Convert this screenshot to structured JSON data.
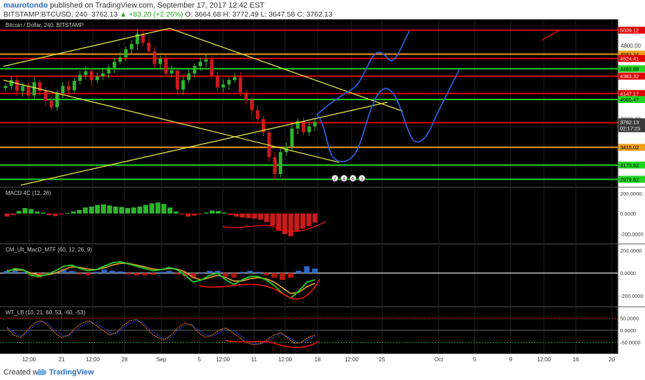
{
  "header": {
    "author": "maurotondo",
    "published": "published on TradingView.com, September 17, 2017 12:42 EST",
    "symbol": "BITSTAMP:BTCUSD, 240",
    "last": "3762.13",
    "change": "▲ +83.20 (+2.26%)",
    "ohlc": "O: 3664.68 H: 3772.49 L: 3647.58 C: 3762.13"
  },
  "footer": {
    "created_with": "Created with",
    "brand": "TradingView"
  },
  "colors": {
    "background": "#000000",
    "up": "#2db52d",
    "down": "#cc1a1a",
    "resistance": "#e00000",
    "support": "#21d421",
    "orange": "#f0a01e",
    "trendline": "#e8e84a",
    "projection": "#2a5ed9",
    "annotation": "#e01010"
  },
  "chart_data": [
    {
      "type": "line",
      "title": "Bitcoin / Dollar, 240, BITSTAMP",
      "x_ticks": [
        "12:00",
        "21",
        "12:00",
        "28",
        "Sep",
        "5",
        "12:00",
        "11",
        "12:00",
        "18",
        "12:00",
        "25",
        "Oct",
        "5",
        "9",
        "12:00",
        "16",
        "20"
      ],
      "ylim": [
        2900,
        5100
      ],
      "price_levels": [
        {
          "value": 5009.12,
          "label": "5009.12",
          "color": "resistance"
        },
        {
          "value": 4683.34,
          "label": "4683.34",
          "color": "orange"
        },
        {
          "value": 4624.41,
          "label": "4624.41",
          "color": "resistance"
        },
        {
          "value": 4483.88,
          "label": "4483.88",
          "color": "support"
        },
        {
          "value": 4383.32,
          "label": "4383.32",
          "color": "resistance"
        },
        {
          "value": 4147.17,
          "label": "4147.17",
          "color": "resistance"
        },
        {
          "value": 4065.47,
          "label": "4065.47",
          "color": "support"
        },
        {
          "value": 3749.42,
          "label": "3749.42",
          "color": "resistance"
        },
        {
          "value": 3415.02,
          "label": "3415.02",
          "color": "orange"
        },
        {
          "value": 3173.92,
          "label": "3173.92",
          "color": "support"
        },
        {
          "value": 2979.82,
          "label": "2979.82",
          "color": "support"
        }
      ],
      "axis_ticks": [
        {
          "value": 4800,
          "label": "4800.00"
        },
        {
          "value": 3800,
          "label": "3800.00"
        }
      ],
      "current_price": {
        "value": 3762.13,
        "label": "3762.13",
        "countdown": "02:17:23"
      },
      "close_series": [
        4250,
        4330,
        4180,
        4250,
        4120,
        4300,
        4180,
        4050,
        3960,
        4150,
        4250,
        4190,
        4320,
        4400,
        4450,
        4330,
        4380,
        4420,
        4500,
        4580,
        4640,
        4750,
        4820,
        4960,
        4840,
        4720,
        4550,
        4620,
        4420,
        4460,
        4200,
        4330,
        4420,
        4520,
        4580,
        4610,
        4390,
        4230,
        4270,
        4330,
        4370,
        4160,
        4060,
        3920,
        3800,
        3620,
        3280,
        3050,
        3350,
        3420,
        3670,
        3770,
        3620,
        3700,
        3762
      ],
      "series": [
        {
          "name": "Bitcoin / Dollar",
          "y": [
            4250,
            4330,
            4180,
            4250,
            4120,
            4300,
            4180,
            4050,
            3960,
            4150,
            4250,
            4190,
            4320,
            4400,
            4450,
            4330,
            4380,
            4420,
            4500,
            4580,
            4640,
            4750,
            4820,
            4960,
            4840,
            4720,
            4550,
            4620,
            4420,
            4460,
            4200,
            4330,
            4420,
            4520,
            4580,
            4610,
            4390,
            4230,
            4270,
            4330,
            4370,
            4160,
            4060,
            3920,
            3800,
            3620,
            3280,
            3050,
            3350,
            3420,
            3670,
            3770,
            3620,
            3700,
            3762
          ]
        }
      ],
      "event_markers": [
        "7",
        "4",
        "6",
        "3"
      ]
    },
    {
      "type": "bar",
      "title": "MACD 4C (12, 26)",
      "ylim": [
        -260,
        220
      ],
      "y_ticks": [
        {
          "value": 200,
          "label": "200.0000"
        },
        {
          "value": 0,
          "label": "0.0000"
        },
        {
          "value": -200,
          "label": "-200.0000"
        }
      ],
      "values": [
        -30,
        -15,
        25,
        55,
        45,
        20,
        10,
        -15,
        -25,
        -10,
        5,
        20,
        35,
        60,
        70,
        85,
        90,
        80,
        70,
        65,
        55,
        60,
        70,
        85,
        100,
        110,
        95,
        60,
        20,
        -10,
        -30,
        -20,
        -5,
        10,
        30,
        25,
        10,
        -15,
        -30,
        -40,
        -45,
        -50,
        -60,
        -85,
        -120,
        -170,
        -205,
        -225,
        -180,
        -150,
        -125,
        -90
      ],
      "series": [
        {
          "name": "MACD 4C",
          "values": [
            -30,
            -15,
            25,
            55,
            45,
            20,
            10,
            -15,
            -25,
            -10,
            5,
            20,
            35,
            60,
            70,
            85,
            90,
            80,
            70,
            65,
            55,
            60,
            70,
            85,
            100,
            110,
            95,
            60,
            20,
            -10,
            -30,
            -20,
            -5,
            10,
            30,
            25,
            10,
            -15,
            -30,
            -40,
            -45,
            -50,
            -60,
            -85,
            -120,
            -170,
            -205,
            -225,
            -180,
            -150,
            -125,
            -90
          ]
        }
      ]
    },
    {
      "type": "line",
      "title": "CM_Ult_MacD_MTF (60, 12, 26, 9)",
      "ylim": [
        -260,
        220
      ],
      "y_ticks": [
        {
          "value": 200,
          "label": "200.0000"
        },
        {
          "value": 0,
          "label": "0.0000"
        },
        {
          "value": -200,
          "label": "-200.0000"
        }
      ],
      "series": [
        {
          "name": "MACD",
          "values": [
            10,
            40,
            30,
            -20,
            -30,
            -10,
            20,
            60,
            70,
            40,
            20,
            30,
            60,
            90,
            100,
            80,
            60,
            40,
            20,
            30,
            50,
            30,
            -20,
            -80,
            -60,
            -20,
            0,
            -60,
            -100,
            -60,
            -30,
            -30,
            -60,
            -110,
            -180,
            -220,
            -160,
            -80,
            -60
          ]
        },
        {
          "name": "Signal",
          "values": [
            20,
            30,
            25,
            0,
            -20,
            -15,
            0,
            30,
            55,
            50,
            35,
            30,
            45,
            70,
            85,
            85,
            70,
            55,
            35,
            30,
            40,
            35,
            10,
            -40,
            -60,
            -40,
            -20,
            -40,
            -70,
            -70,
            -50,
            -40,
            -50,
            -80,
            -130,
            -180,
            -170,
            -120,
            -90
          ]
        }
      ],
      "histogram": [
        20,
        30,
        10,
        -20,
        -40,
        -20,
        10,
        30,
        20,
        -10,
        -20,
        10,
        30,
        20,
        15,
        -10,
        -20,
        -20,
        -15,
        10,
        20,
        -10,
        -30,
        -40,
        0,
        20,
        20,
        -30,
        -40,
        10,
        20,
        10,
        -20,
        -40,
        -60,
        -40,
        20,
        60,
        40
      ]
    },
    {
      "type": "line",
      "title": "WT_LB (10, 21, 60, 53, -60, -53)",
      "ylim": [
        -80,
        80
      ],
      "y_ticks": [
        {
          "value": 50,
          "label": "50.0000"
        },
        {
          "value": 0,
          "label": "0.0000"
        },
        {
          "value": -50,
          "label": "-50.0000"
        }
      ],
      "series": [
        {
          "name": "WT1",
          "values": [
            10,
            -20,
            -30,
            0,
            30,
            40,
            20,
            -10,
            -30,
            -20,
            10,
            30,
            40,
            20,
            0,
            -20,
            -10,
            20,
            40,
            45,
            20,
            -10,
            -30,
            -40,
            -20,
            10,
            30,
            20,
            -10,
            -30,
            -20,
            0,
            10,
            -10,
            -30,
            -50,
            -60,
            -55,
            -40,
            -20,
            -10,
            -30,
            -55,
            -50,
            -30,
            -20
          ]
        },
        {
          "name": "WT2",
          "values": [
            15,
            -10,
            -25,
            -10,
            20,
            35,
            30,
            0,
            -20,
            -25,
            0,
            20,
            35,
            30,
            10,
            -10,
            -15,
            10,
            30,
            40,
            30,
            0,
            -20,
            -35,
            -30,
            0,
            20,
            25,
            0,
            -20,
            -25,
            -10,
            5,
            0,
            -20,
            -40,
            -55,
            -57,
            -45,
            -30,
            -15,
            -25,
            -45,
            -52,
            -40,
            -25
          ]
        }
      ]
    }
  ]
}
